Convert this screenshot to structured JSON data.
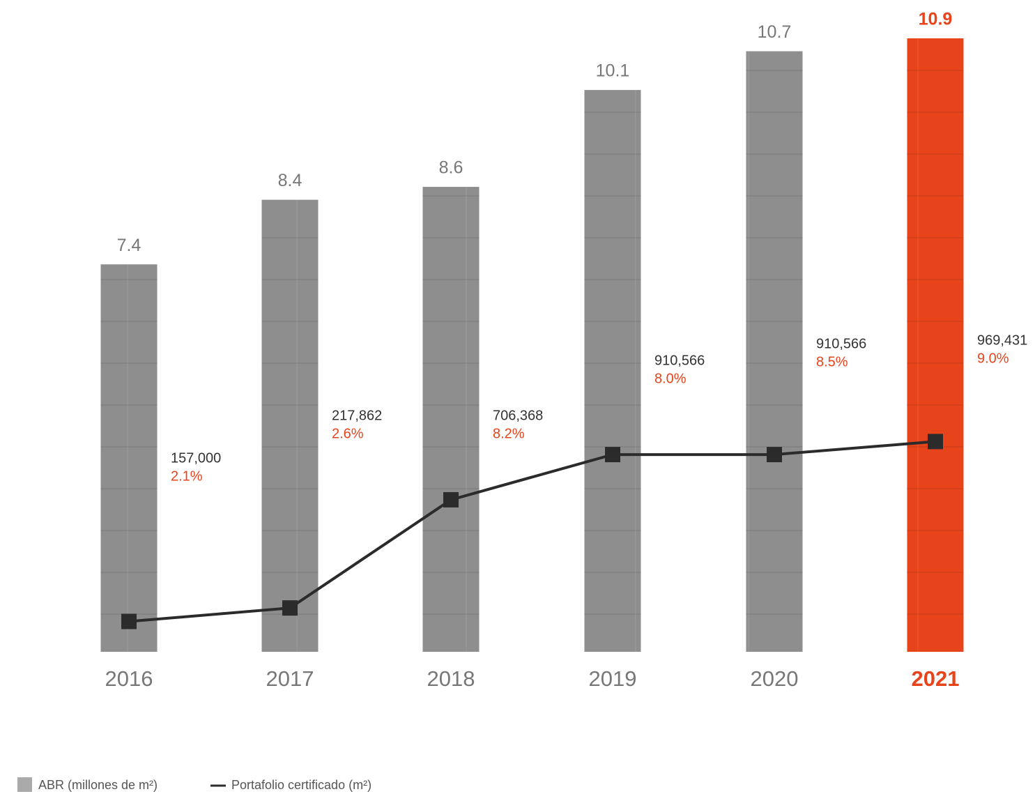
{
  "chart_data": {
    "type": "bar",
    "categories": [
      "2016",
      "2017",
      "2018",
      "2019",
      "2020",
      "2021"
    ],
    "series": [
      {
        "name": "ABR (millones de m²)",
        "type": "bar",
        "colors": [
          "#8e8e8e",
          "#8e8e8e",
          "#8e8e8e",
          "#8e8e8e",
          "#8e8e8e",
          "#e8441c"
        ],
        "values": [
          7.4,
          8.4,
          8.6,
          10.1,
          10.7,
          10.9
        ]
      },
      {
        "name": "Portafolio certificado (m²)",
        "type": "line",
        "axis": "y2",
        "color": "#2b2b2b",
        "values": [
          157000,
          217862,
          706368,
          910566,
          910566,
          969431
        ],
        "value_labels": [
          "157,000",
          "217,862",
          "706,368",
          "910,566",
          "910,566",
          "969,431"
        ]
      }
    ],
    "percent": {
      "color": "#e8441c",
      "values": [
        2.1,
        2.6,
        8.2,
        8.0,
        8.5,
        9.0
      ],
      "value_labels": [
        "2.1%",
        "2.6%",
        "8.2%",
        "8.0%",
        "8.5%",
        "9.0%"
      ]
    },
    "ylim": [
      1.4,
      10.9
    ],
    "y2lim": [
      20000,
      2790000
    ],
    "legend": "bottom-left"
  }
}
